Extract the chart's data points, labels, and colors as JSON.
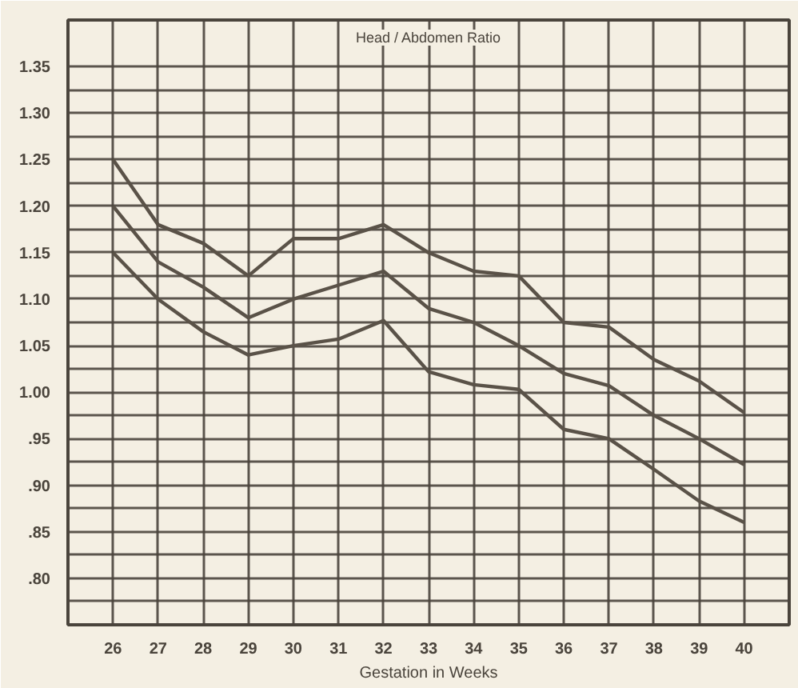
{
  "chart_data": {
    "type": "line",
    "title": "Head / Abdomen Ratio",
    "xlabel": "Gestation in Weeks",
    "x": [
      26,
      27,
      28,
      29,
      30,
      31,
      32,
      33,
      34,
      35,
      36,
      37,
      38,
      39,
      40
    ],
    "series": [
      {
        "color": "#5a5248",
        "values": [
          1.25,
          1.18,
          1.16,
          1.125,
          1.165,
          1.165,
          1.18,
          1.15,
          1.13,
          1.125,
          1.075,
          1.07,
          1.035,
          1.012,
          0.978
        ]
      },
      {
        "color": "#5a5248",
        "values": [
          1.2,
          1.14,
          1.113,
          1.08,
          1.1,
          1.115,
          1.13,
          1.09,
          1.075,
          1.05,
          1.02,
          1.007,
          0.975,
          0.95,
          0.922
        ]
      },
      {
        "color": "#5a5248",
        "values": [
          1.15,
          1.1,
          1.065,
          1.04,
          1.05,
          1.057,
          1.077,
          1.022,
          1.008,
          1.003,
          0.96,
          0.95,
          0.917,
          0.883,
          0.86
        ]
      }
    ],
    "xlim": [
      25,
      41
    ],
    "ylim": [
      0.75,
      1.4
    ],
    "xticks": [
      26,
      27,
      28,
      29,
      30,
      31,
      32,
      33,
      34,
      35,
      36,
      37,
      38,
      39,
      40
    ],
    "yticks": [
      {
        "value": 0.75,
        "label": null
      },
      {
        "value": 0.775,
        "label": null
      },
      {
        "value": 0.8,
        "label": ".80"
      },
      {
        "value": 0.825,
        "label": null
      },
      {
        "value": 0.85,
        "label": ".85"
      },
      {
        "value": 0.875,
        "label": null
      },
      {
        "value": 0.9,
        "label": ".90"
      },
      {
        "value": 0.925,
        "label": null
      },
      {
        "value": 0.95,
        "label": ".95"
      },
      {
        "value": 0.975,
        "label": null
      },
      {
        "value": 1.0,
        "label": "1.00"
      },
      {
        "value": 1.025,
        "label": null
      },
      {
        "value": 1.05,
        "label": "1.05"
      },
      {
        "value": 1.075,
        "label": null
      },
      {
        "value": 1.1,
        "label": "1.10"
      },
      {
        "value": 1.125,
        "label": null
      },
      {
        "value": 1.15,
        "label": "1.15"
      },
      {
        "value": 1.175,
        "label": null
      },
      {
        "value": 1.2,
        "label": "1.20"
      },
      {
        "value": 1.225,
        "label": null
      },
      {
        "value": 1.25,
        "label": "1.25"
      },
      {
        "value": 1.275,
        "label": null
      },
      {
        "value": 1.3,
        "label": "1.30"
      },
      {
        "value": 1.325,
        "label": null
      },
      {
        "value": 1.35,
        "label": "1.35"
      }
    ],
    "grid": true,
    "marker": "none",
    "line_style": "solid"
  }
}
